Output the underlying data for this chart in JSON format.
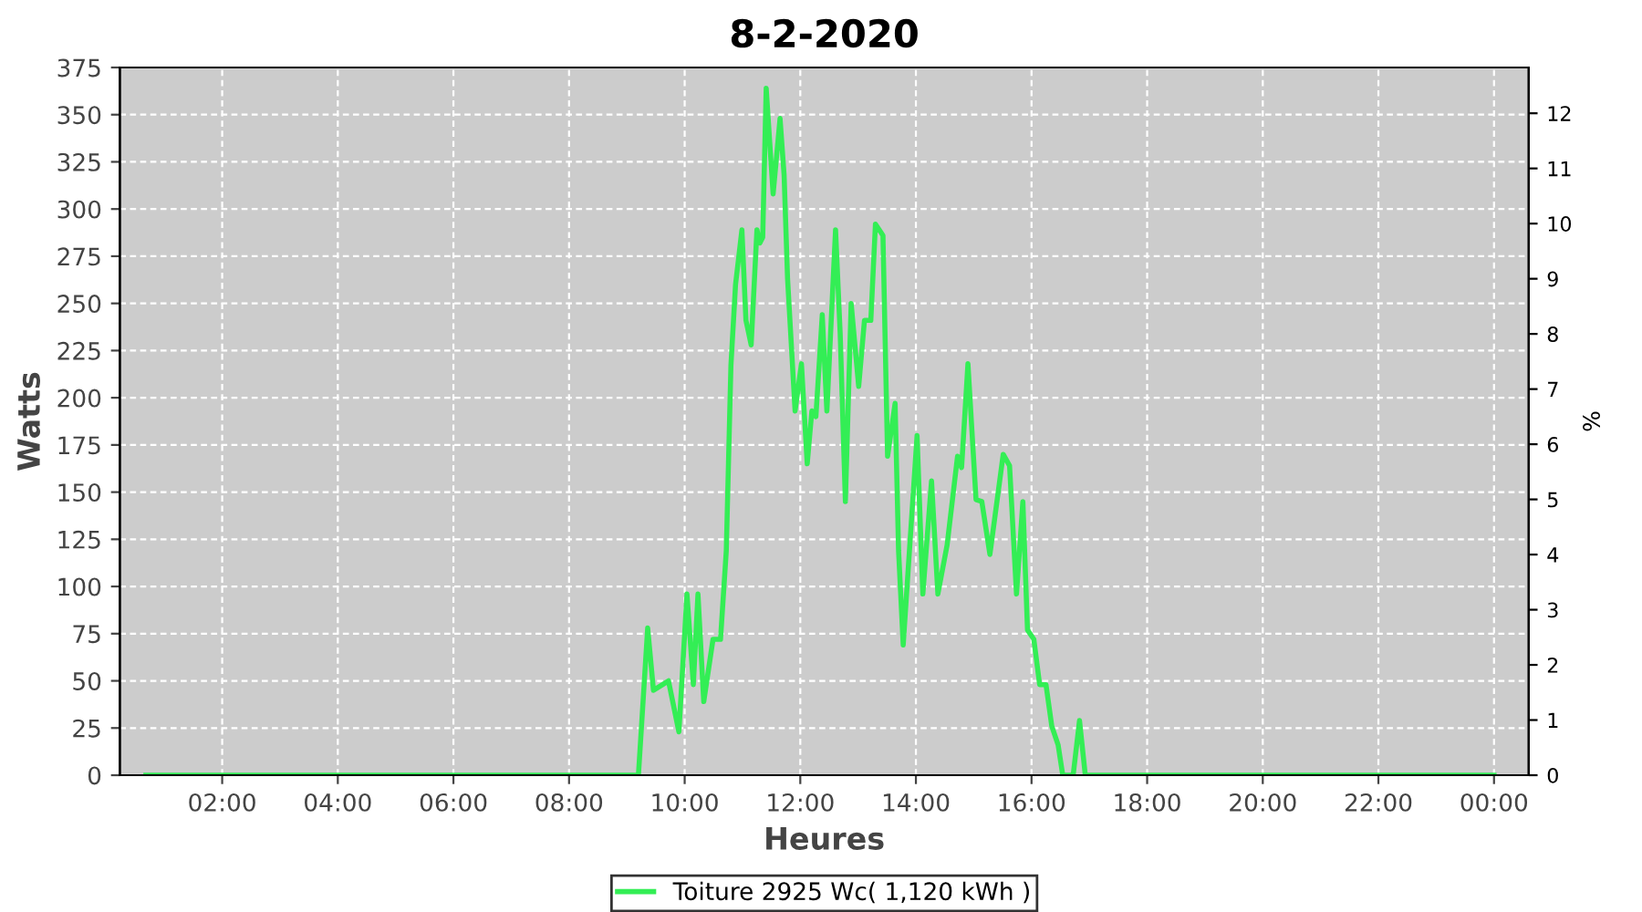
{
  "chart_data": {
    "type": "line",
    "title": "8-2-2020",
    "xlabel": "Heures",
    "ylabel": "Watts",
    "y2label": "%",
    "xlim": [
      0.23,
      24.6
    ],
    "ylim": [
      0,
      375
    ],
    "y2lim": [
      0,
      12.83
    ],
    "xticks": [
      {
        "value": 2,
        "label": "02:00"
      },
      {
        "value": 4,
        "label": "04:00"
      },
      {
        "value": 6,
        "label": "06:00"
      },
      {
        "value": 8,
        "label": "08:00"
      },
      {
        "value": 10,
        "label": "10:00"
      },
      {
        "value": 12,
        "label": "12:00"
      },
      {
        "value": 14,
        "label": "14:00"
      },
      {
        "value": 16,
        "label": "16:00"
      },
      {
        "value": 18,
        "label": "18:00"
      },
      {
        "value": 20,
        "label": "20:00"
      },
      {
        "value": 22,
        "label": "22:00"
      },
      {
        "value": 24,
        "label": "00:00"
      }
    ],
    "yticks": [
      0,
      25,
      50,
      75,
      100,
      125,
      150,
      175,
      200,
      225,
      250,
      275,
      300,
      325,
      350,
      375
    ],
    "y2ticks": [
      0,
      1,
      2,
      3,
      4,
      5,
      6,
      7,
      8,
      9,
      10,
      11,
      12
    ],
    "grid": true,
    "legend": "bottom",
    "marker": "none",
    "line_style": "solid",
    "series": [
      {
        "name": "Toiture 2925 Wc( 1,120 kWh )",
        "color": "#33ee55",
        "x": [
          0.68,
          9.2,
          9.36,
          9.46,
          9.72,
          9.9,
          10.04,
          10.15,
          10.23,
          10.33,
          10.49,
          10.62,
          10.72,
          10.8,
          10.88,
          10.99,
          11.06,
          11.15,
          11.25,
          11.3,
          11.35,
          11.41,
          11.53,
          11.65,
          11.72,
          11.78,
          11.91,
          12.02,
          12.12,
          12.2,
          12.27,
          12.38,
          12.46,
          12.61,
          12.69,
          12.78,
          12.88,
          13.01,
          13.11,
          13.22,
          13.3,
          13.43,
          13.51,
          13.64,
          13.7,
          13.78,
          14.02,
          14.12,
          14.27,
          14.38,
          14.54,
          14.72,
          14.79,
          14.9,
          15.04,
          15.14,
          15.28,
          15.51,
          15.62,
          15.74,
          15.85,
          15.93,
          16.04,
          16.14,
          16.25,
          16.35,
          16.46,
          16.54,
          16.72,
          16.83,
          16.93,
          24.0
        ],
        "values": [
          0,
          0,
          78,
          45,
          50,
          23,
          96,
          48,
          96,
          39,
          72,
          72,
          119,
          217,
          260,
          289,
          241,
          228,
          289,
          282,
          285,
          364,
          308,
          348,
          318,
          263,
          193,
          218,
          165,
          193,
          190,
          244,
          193,
          289,
          234,
          145,
          250,
          206,
          241,
          241,
          292,
          286,
          169,
          197,
          119,
          69,
          180,
          96,
          156,
          96,
          122,
          169,
          163,
          218,
          146,
          145,
          117,
          170,
          164,
          96,
          145,
          77,
          72,
          48,
          48,
          26,
          16,
          0,
          0,
          29,
          0,
          0
        ]
      }
    ]
  }
}
